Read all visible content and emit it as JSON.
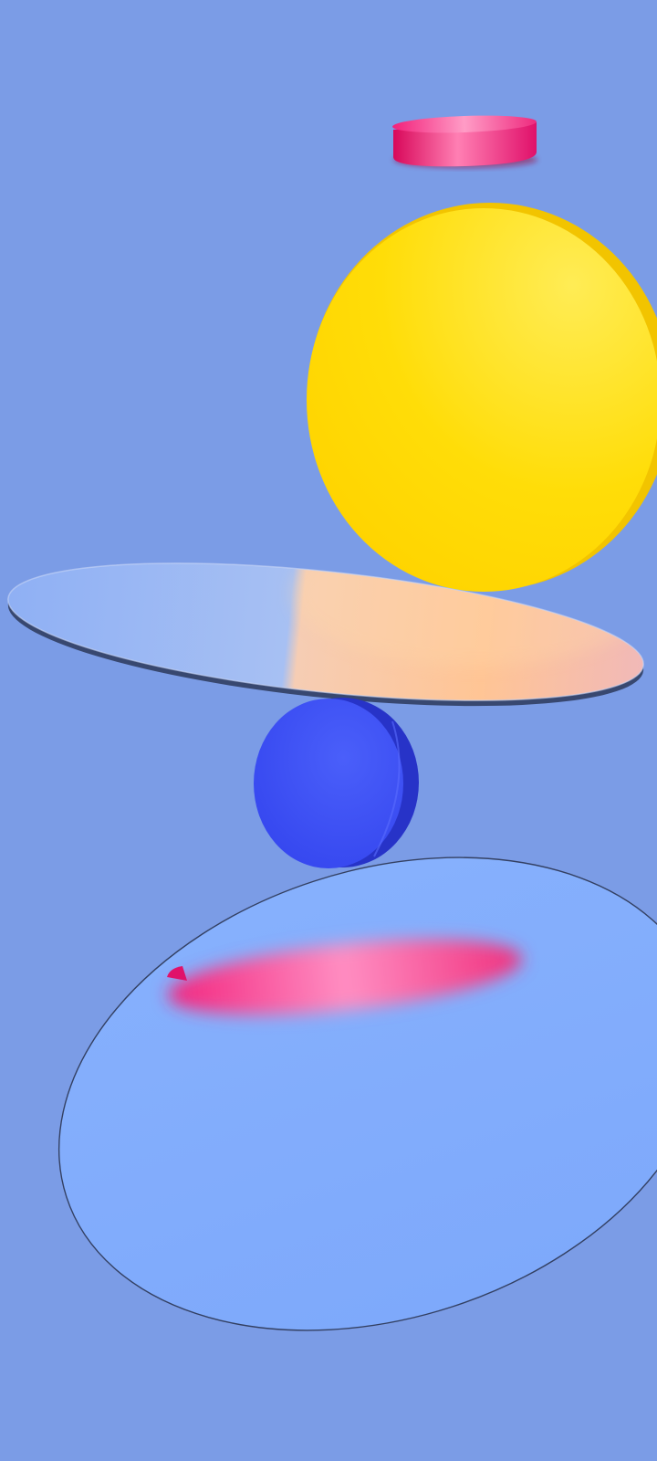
{
  "wallpaper": {
    "background_color": "#7b9ce6",
    "shapes": [
      {
        "name": "pink-disc-top",
        "kind": "disc",
        "color": "#e8126a"
      },
      {
        "name": "yellow-disc",
        "kind": "disc",
        "color": "#ffd900"
      },
      {
        "name": "glass-disc-upper",
        "kind": "glass-disc",
        "tint": "#a9c0f6",
        "glow": "#ffc58d"
      },
      {
        "name": "blue-disc",
        "kind": "disc",
        "color": "#3b4df3"
      },
      {
        "name": "glass-disc-lower",
        "kind": "glass-disc",
        "tint": "#80acfc"
      },
      {
        "name": "pink-disc-blurred",
        "kind": "disc",
        "color": "#f0338a"
      }
    ]
  }
}
